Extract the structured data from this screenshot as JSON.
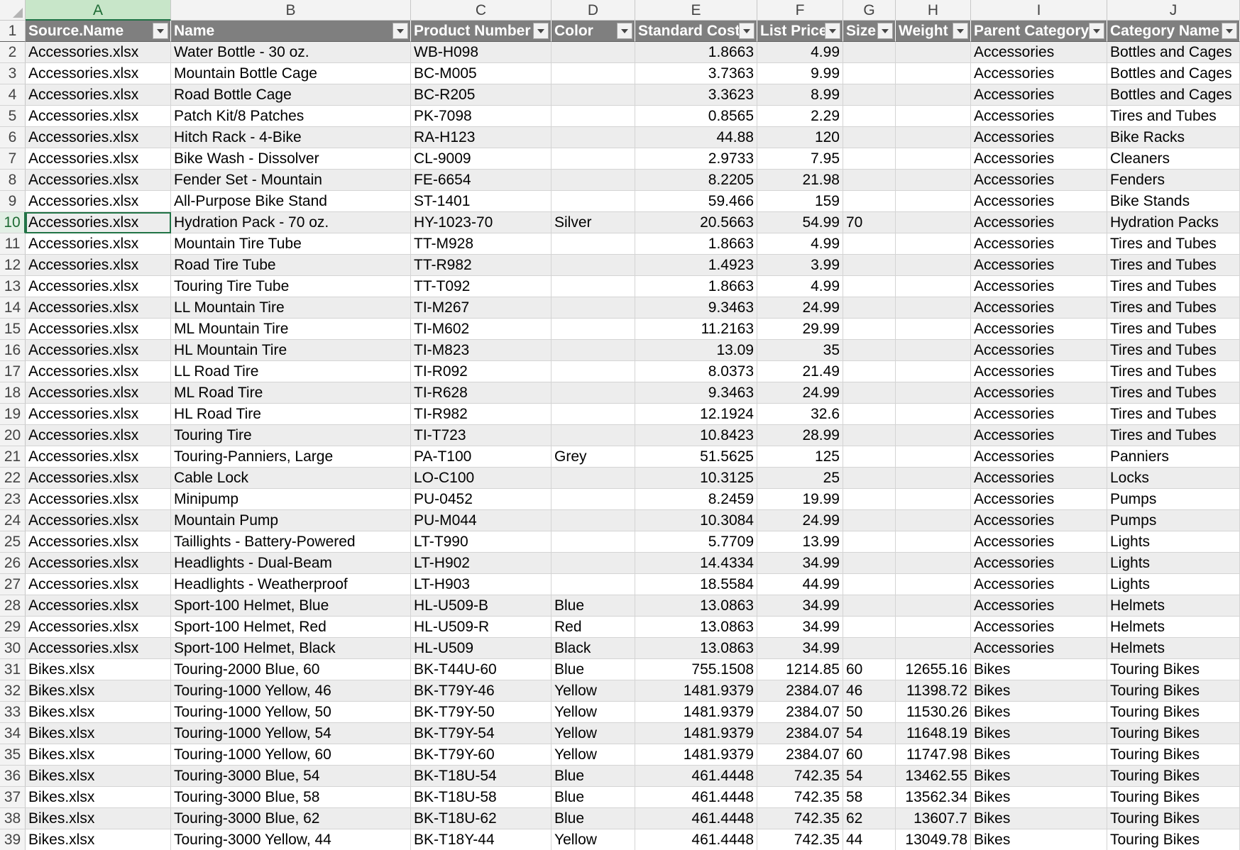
{
  "columns": [
    "A",
    "B",
    "C",
    "D",
    "E",
    "F",
    "G",
    "H",
    "I",
    "J"
  ],
  "headers": [
    "Source.Name",
    "Name",
    "Product Number",
    "Color",
    "Standard Cost",
    "List Price",
    "Size",
    "Weight",
    "Parent Category",
    "Category Name"
  ],
  "rows": [
    [
      "Accessories.xlsx",
      "Water Bottle - 30 oz.",
      "WB-H098",
      "",
      "1.8663",
      "4.99",
      "",
      "",
      "Accessories",
      "Bottles and Cages"
    ],
    [
      "Accessories.xlsx",
      "Mountain Bottle Cage",
      "BC-M005",
      "",
      "3.7363",
      "9.99",
      "",
      "",
      "Accessories",
      "Bottles and Cages"
    ],
    [
      "Accessories.xlsx",
      "Road Bottle Cage",
      "BC-R205",
      "",
      "3.3623",
      "8.99",
      "",
      "",
      "Accessories",
      "Bottles and Cages"
    ],
    [
      "Accessories.xlsx",
      "Patch Kit/8 Patches",
      "PK-7098",
      "",
      "0.8565",
      "2.29",
      "",
      "",
      "Accessories",
      "Tires and Tubes"
    ],
    [
      "Accessories.xlsx",
      "Hitch Rack - 4-Bike",
      "RA-H123",
      "",
      "44.88",
      "120",
      "",
      "",
      "Accessories",
      "Bike Racks"
    ],
    [
      "Accessories.xlsx",
      "Bike Wash - Dissolver",
      "CL-9009",
      "",
      "2.9733",
      "7.95",
      "",
      "",
      "Accessories",
      "Cleaners"
    ],
    [
      "Accessories.xlsx",
      "Fender Set - Mountain",
      "FE-6654",
      "",
      "8.2205",
      "21.98",
      "",
      "",
      "Accessories",
      "Fenders"
    ],
    [
      "Accessories.xlsx",
      "All-Purpose Bike Stand",
      "ST-1401",
      "",
      "59.466",
      "159",
      "",
      "",
      "Accessories",
      "Bike Stands"
    ],
    [
      "Accessories.xlsx",
      "Hydration Pack - 70 oz.",
      "HY-1023-70",
      "Silver",
      "20.5663",
      "54.99",
      "70",
      "",
      "Accessories",
      "Hydration Packs"
    ],
    [
      "Accessories.xlsx",
      "Mountain Tire Tube",
      "TT-M928",
      "",
      "1.8663",
      "4.99",
      "",
      "",
      "Accessories",
      "Tires and Tubes"
    ],
    [
      "Accessories.xlsx",
      "Road Tire Tube",
      "TT-R982",
      "",
      "1.4923",
      "3.99",
      "",
      "",
      "Accessories",
      "Tires and Tubes"
    ],
    [
      "Accessories.xlsx",
      "Touring Tire Tube",
      "TT-T092",
      "",
      "1.8663",
      "4.99",
      "",
      "",
      "Accessories",
      "Tires and Tubes"
    ],
    [
      "Accessories.xlsx",
      "LL Mountain Tire",
      "TI-M267",
      "",
      "9.3463",
      "24.99",
      "",
      "",
      "Accessories",
      "Tires and Tubes"
    ],
    [
      "Accessories.xlsx",
      "ML Mountain Tire",
      "TI-M602",
      "",
      "11.2163",
      "29.99",
      "",
      "",
      "Accessories",
      "Tires and Tubes"
    ],
    [
      "Accessories.xlsx",
      "HL Mountain Tire",
      "TI-M823",
      "",
      "13.09",
      "35",
      "",
      "",
      "Accessories",
      "Tires and Tubes"
    ],
    [
      "Accessories.xlsx",
      "LL Road Tire",
      "TI-R092",
      "",
      "8.0373",
      "21.49",
      "",
      "",
      "Accessories",
      "Tires and Tubes"
    ],
    [
      "Accessories.xlsx",
      "ML Road Tire",
      "TI-R628",
      "",
      "9.3463",
      "24.99",
      "",
      "",
      "Accessories",
      "Tires and Tubes"
    ],
    [
      "Accessories.xlsx",
      "HL Road Tire",
      "TI-R982",
      "",
      "12.1924",
      "32.6",
      "",
      "",
      "Accessories",
      "Tires and Tubes"
    ],
    [
      "Accessories.xlsx",
      "Touring Tire",
      "TI-T723",
      "",
      "10.8423",
      "28.99",
      "",
      "",
      "Accessories",
      "Tires and Tubes"
    ],
    [
      "Accessories.xlsx",
      "Touring-Panniers, Large",
      "PA-T100",
      "Grey",
      "51.5625",
      "125",
      "",
      "",
      "Accessories",
      "Panniers"
    ],
    [
      "Accessories.xlsx",
      "Cable Lock",
      "LO-C100",
      "",
      "10.3125",
      "25",
      "",
      "",
      "Accessories",
      "Locks"
    ],
    [
      "Accessories.xlsx",
      "Minipump",
      "PU-0452",
      "",
      "8.2459",
      "19.99",
      "",
      "",
      "Accessories",
      "Pumps"
    ],
    [
      "Accessories.xlsx",
      "Mountain Pump",
      "PU-M044",
      "",
      "10.3084",
      "24.99",
      "",
      "",
      "Accessories",
      "Pumps"
    ],
    [
      "Accessories.xlsx",
      "Taillights - Battery-Powered",
      "LT-T990",
      "",
      "5.7709",
      "13.99",
      "",
      "",
      "Accessories",
      "Lights"
    ],
    [
      "Accessories.xlsx",
      "Headlights - Dual-Beam",
      "LT-H902",
      "",
      "14.4334",
      "34.99",
      "",
      "",
      "Accessories",
      "Lights"
    ],
    [
      "Accessories.xlsx",
      "Headlights - Weatherproof",
      "LT-H903",
      "",
      "18.5584",
      "44.99",
      "",
      "",
      "Accessories",
      "Lights"
    ],
    [
      "Accessories.xlsx",
      "Sport-100 Helmet, Blue",
      "HL-U509-B",
      "Blue",
      "13.0863",
      "34.99",
      "",
      "",
      "Accessories",
      "Helmets"
    ],
    [
      "Accessories.xlsx",
      "Sport-100 Helmet, Red",
      "HL-U509-R",
      "Red",
      "13.0863",
      "34.99",
      "",
      "",
      "Accessories",
      "Helmets"
    ],
    [
      "Accessories.xlsx",
      "Sport-100 Helmet, Black",
      "HL-U509",
      "Black",
      "13.0863",
      "34.99",
      "",
      "",
      "Accessories",
      "Helmets"
    ],
    [
      "Bikes.xlsx",
      "Touring-2000 Blue, 60",
      "BK-T44U-60",
      "Blue",
      "755.1508",
      "1214.85",
      "60",
      "12655.16",
      "Bikes",
      "Touring Bikes"
    ],
    [
      "Bikes.xlsx",
      "Touring-1000 Yellow, 46",
      "BK-T79Y-46",
      "Yellow",
      "1481.9379",
      "2384.07",
      "46",
      "11398.72",
      "Bikes",
      "Touring Bikes"
    ],
    [
      "Bikes.xlsx",
      "Touring-1000 Yellow, 50",
      "BK-T79Y-50",
      "Yellow",
      "1481.9379",
      "2384.07",
      "50",
      "11530.26",
      "Bikes",
      "Touring Bikes"
    ],
    [
      "Bikes.xlsx",
      "Touring-1000 Yellow, 54",
      "BK-T79Y-54",
      "Yellow",
      "1481.9379",
      "2384.07",
      "54",
      "11648.19",
      "Bikes",
      "Touring Bikes"
    ],
    [
      "Bikes.xlsx",
      "Touring-1000 Yellow, 60",
      "BK-T79Y-60",
      "Yellow",
      "1481.9379",
      "2384.07",
      "60",
      "11747.98",
      "Bikes",
      "Touring Bikes"
    ],
    [
      "Bikes.xlsx",
      "Touring-3000 Blue, 54",
      "BK-T18U-54",
      "Blue",
      "461.4448",
      "742.35",
      "54",
      "13462.55",
      "Bikes",
      "Touring Bikes"
    ],
    [
      "Bikes.xlsx",
      "Touring-3000 Blue, 58",
      "BK-T18U-58",
      "Blue",
      "461.4448",
      "742.35",
      "58",
      "13562.34",
      "Bikes",
      "Touring Bikes"
    ],
    [
      "Bikes.xlsx",
      "Touring-3000 Blue, 62",
      "BK-T18U-62",
      "Blue",
      "461.4448",
      "742.35",
      "62",
      "13607.7",
      "Bikes",
      "Touring Bikes"
    ],
    [
      "Bikes.xlsx",
      "Touring-3000 Yellow, 44",
      "BK-T18Y-44",
      "Yellow",
      "461.4448",
      "742.35",
      "44",
      "13049.78",
      "Bikes",
      "Touring Bikes"
    ]
  ],
  "selected_column": "A",
  "selected_row": 10,
  "colors": {
    "header_bg": "#7f7f7f",
    "band": "#ededed",
    "accent": "#217346"
  }
}
